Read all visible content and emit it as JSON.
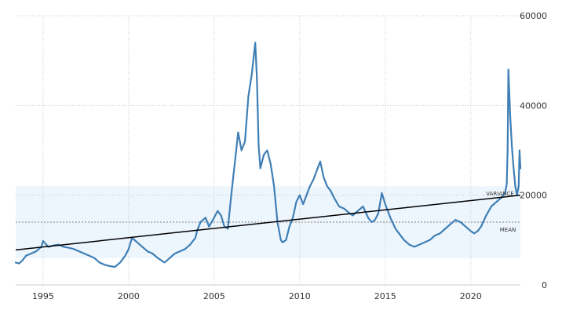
{
  "chart_data": {
    "type": "line",
    "title": "",
    "xlabel": "",
    "ylabel": "",
    "xlim": [
      1993.4,
      2022.9
    ],
    "ylim": [
      0,
      60000
    ],
    "x_ticks": [
      1995,
      2000,
      2005,
      2010,
      2015,
      2020
    ],
    "x_tick_labels": [
      "1995",
      "2000",
      "2005",
      "2010",
      "2015",
      "2020"
    ],
    "y_ticks": [
      0,
      20000,
      40000,
      60000
    ],
    "y_tick_labels": [
      "0",
      "20000",
      "40000",
      "60000"
    ],
    "y_axis_side": "right",
    "grid": "dotted",
    "legend": "none",
    "colors": {
      "series": "#3f7fb5",
      "trend": "#000000",
      "band": "#eef6fd",
      "mean_line": "#555555",
      "grid": "#c8c8c8"
    },
    "series": [
      {
        "x": [
          1993.4,
          1993.6,
          1993.8,
          1994.0,
          1994.3,
          1994.6,
          1994.9,
          1995.0,
          1995.3,
          1995.6,
          1995.9,
          1996.2,
          1996.5,
          1996.8,
          1997.1,
          1997.4,
          1997.7,
          1998.0,
          1998.3,
          1998.6,
          1998.9,
          1999.2,
          1999.5,
          1999.8,
          2000.0,
          2000.2,
          2000.5,
          2000.8,
          2001.1,
          2001.4,
          2001.7,
          2001.9,
          2002.1,
          2002.4,
          2002.7,
          2003.0,
          2003.3,
          2003.6,
          2003.9,
          2004.0,
          2004.2,
          2004.5,
          2004.7,
          2005.0,
          2005.2,
          2005.4,
          2005.6,
          2005.8,
          2006.0,
          2006.2,
          2006.4,
          2006.6,
          2006.8,
          2007.0,
          2007.2,
          2007.4,
          2007.5,
          2007.6,
          2007.7,
          2007.9,
          2008.1,
          2008.3,
          2008.5,
          2008.7,
          2008.9,
          2009.0,
          2009.2,
          2009.4,
          2009.6,
          2009.8,
          2010.0,
          2010.2,
          2010.4,
          2010.6,
          2010.8,
          2011.0,
          2011.2,
          2011.4,
          2011.6,
          2011.8,
          2012.0,
          2012.3,
          2012.6,
          2012.9,
          2013.1,
          2013.4,
          2013.7,
          2014.0,
          2014.2,
          2014.4,
          2014.6,
          2014.8,
          2015.0,
          2015.3,
          2015.6,
          2015.9,
          2016.1,
          2016.4,
          2016.7,
          2017.0,
          2017.3,
          2017.6,
          2017.9,
          2018.2,
          2018.5,
          2018.8,
          2019.1,
          2019.4,
          2019.7,
          2020.0,
          2020.2,
          2020.4,
          2020.6,
          2020.9,
          2021.2,
          2021.5,
          2021.8,
          2022.0,
          2022.1,
          2022.15,
          2022.2,
          2022.3,
          2022.4,
          2022.5,
          2022.6,
          2022.7,
          2022.8,
          2022.85,
          2022.9
        ],
        "values": [
          5000,
          4800,
          5500,
          6500,
          7000,
          7500,
          8500,
          9800,
          8500,
          8800,
          9000,
          8500,
          8300,
          8000,
          7500,
          7000,
          6500,
          6000,
          5000,
          4500,
          4200,
          4000,
          5000,
          6500,
          8000,
          10500,
          9500,
          8500,
          7500,
          7000,
          6000,
          5500,
          5000,
          6000,
          7000,
          7500,
          8000,
          9000,
          10500,
          12000,
          14000,
          15000,
          13000,
          15000,
          16500,
          15500,
          13000,
          12500,
          20000,
          27000,
          34000,
          30000,
          32000,
          42000,
          47000,
          54000,
          46000,
          31000,
          26000,
          29000,
          30000,
          27000,
          22000,
          14000,
          10000,
          9500,
          10000,
          13000,
          15000,
          18500,
          20000,
          18000,
          20000,
          22000,
          23500,
          25500,
          27500,
          24000,
          22000,
          21000,
          19500,
          17500,
          17000,
          16000,
          15500,
          16500,
          17500,
          15000,
          14000,
          14500,
          16000,
          20500,
          18000,
          15000,
          12500,
          11000,
          10000,
          9000,
          8500,
          9000,
          9500,
          10000,
          11000,
          11500,
          12500,
          13500,
          14500,
          14000,
          13000,
          12000,
          11500,
          12000,
          13000,
          15500,
          17500,
          18500,
          19500,
          20500,
          22500,
          30000,
          48000,
          38000,
          31000,
          26000,
          22000,
          20000,
          22000,
          30000,
          26000
        ]
      }
    ],
    "trend_line": {
      "x": [
        1993.4,
        2022.9
      ],
      "values": [
        7800,
        20000
      ]
    },
    "variance_band": {
      "range": [
        6000,
        22000
      ],
      "label": "VARIANCE"
    },
    "mean_line": {
      "value": 14000,
      "label": "MEAN"
    }
  }
}
